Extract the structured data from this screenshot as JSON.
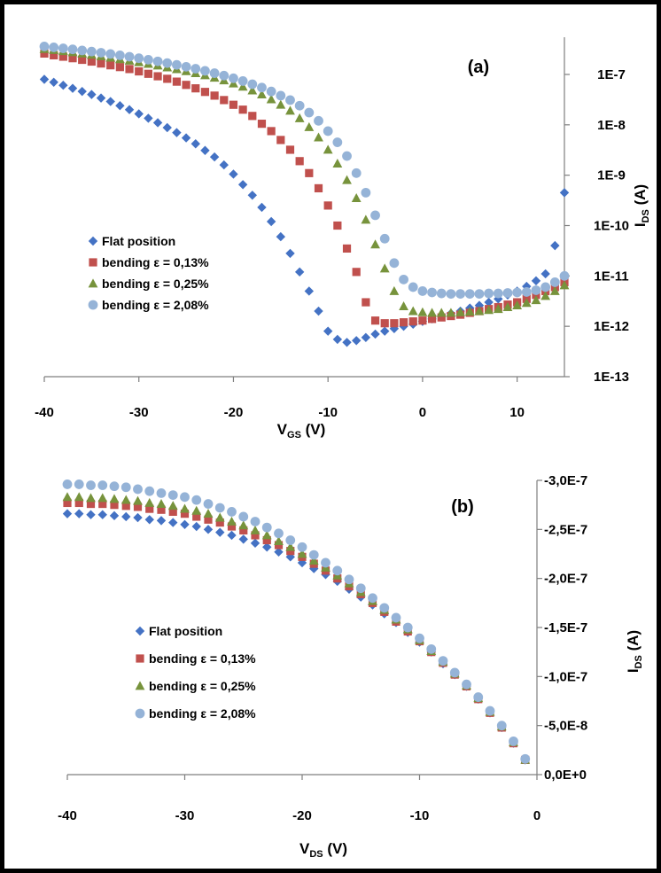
{
  "series_style": [
    {
      "color": "#4472C4",
      "marker": "diamond"
    },
    {
      "color": "#C0504D",
      "marker": "square"
    },
    {
      "color": "#77933C",
      "marker": "triangle"
    },
    {
      "color": "#95B3D7",
      "marker": "circle"
    }
  ],
  "chart_data": [
    {
      "type": "scatter",
      "panel_label": "(a)",
      "xlabel_main": "V",
      "xlabel_sub": "GS",
      "xlabel_unit": " (V)",
      "ylabel_main": "I",
      "ylabel_sub": "DS",
      "ylabel_unit": " (A)",
      "xlim": [
        -40,
        15
      ],
      "ylim": [
        1e-13,
        4e-07
      ],
      "log_y": true,
      "x_ticks": [
        -40,
        -30,
        -20,
        -10,
        0,
        10
      ],
      "x_tick_labels": [
        "-40",
        "-30",
        "-20",
        "-10",
        "0",
        "10"
      ],
      "y_ticks": [
        1e-07,
        1e-08,
        1e-09,
        1e-10,
        1e-11,
        1e-12,
        1e-13
      ],
      "y_tick_labels": [
        "1E-7",
        "1E-8",
        "1E-9",
        "1E-10",
        "1E-11",
        "1E-12",
        "1E-13"
      ],
      "y_axis_side": "right",
      "legend_position": "left-middle",
      "series": [
        {
          "name": "Flat position",
          "x": [
            -40,
            -39,
            -38,
            -37,
            -36,
            -35,
            -34,
            -33,
            -32,
            -31,
            -30,
            -29,
            -28,
            -27,
            -26,
            -25,
            -24,
            -23,
            -22,
            -21,
            -20,
            -19,
            -18,
            -17,
            -16,
            -15,
            -14,
            -13,
            -12,
            -11,
            -10,
            -9,
            -8,
            -7,
            -6,
            -5,
            -4,
            -3,
            -2,
            -1,
            0,
            1,
            2,
            3,
            4,
            5,
            6,
            7,
            8,
            9,
            10,
            11,
            12,
            13,
            14,
            15
          ],
          "y": [
            8e-08,
            7e-08,
            6.1e-08,
            5.3e-08,
            4.6e-08,
            4e-08,
            3.4e-08,
            2.9e-08,
            2.4e-08,
            2e-08,
            1.65e-08,
            1.35e-08,
            1.1e-08,
            8.8e-09,
            7e-09,
            5.5e-09,
            4.2e-09,
            3.1e-09,
            2.3e-09,
            1.6e-09,
            1.05e-09,
            6.5e-10,
            4e-10,
            2.3e-10,
            1.2e-10,
            6e-11,
            2.8e-11,
            1.2e-11,
            5e-12,
            2e-12,
            8e-13,
            5.5e-13,
            4.8e-13,
            5.2e-13,
            6e-13,
            7e-13,
            8e-13,
            9e-13,
            1e-12,
            1.1e-12,
            1.25e-12,
            1.4e-12,
            1.6e-12,
            1.8e-12,
            2e-12,
            2.3e-12,
            2.6e-12,
            3e-12,
            3.5e-12,
            4.2e-12,
            5e-12,
            6.2e-12,
            8e-12,
            1.1e-11,
            4e-11,
            4.5e-10
          ]
        },
        {
          "name": "bending ε = 0,13%",
          "x": [
            -40,
            -39,
            -38,
            -37,
            -36,
            -35,
            -34,
            -33,
            -32,
            -31,
            -30,
            -29,
            -28,
            -27,
            -26,
            -25,
            -24,
            -23,
            -22,
            -21,
            -20,
            -19,
            -18,
            -17,
            -16,
            -15,
            -14,
            -13,
            -12,
            -11,
            -10,
            -9,
            -8,
            -7,
            -6,
            -5,
            -4,
            -3,
            -2,
            -1,
            0,
            1,
            2,
            3,
            4,
            5,
            6,
            7,
            8,
            9,
            10,
            11,
            12,
            13,
            14,
            15
          ],
          "y": [
            2.6e-07,
            2.4e-07,
            2.25e-07,
            2.1e-07,
            1.95e-07,
            1.8e-07,
            1.65e-07,
            1.52e-07,
            1.4e-07,
            1.28e-07,
            1.15e-07,
            1.03e-07,
            9.2e-08,
            8.2e-08,
            7.2e-08,
            6.2e-08,
            5.3e-08,
            4.5e-08,
            3.8e-08,
            3.1e-08,
            2.5e-08,
            2e-08,
            1.5e-08,
            1.05e-08,
            7.5e-09,
            5e-09,
            3.2e-09,
            1.9e-09,
            1.1e-09,
            5.5e-10,
            2.5e-10,
            1e-10,
            3.5e-11,
            1.2e-11,
            3e-12,
            1.3e-12,
            1.15e-12,
            1.15e-12,
            1.2e-12,
            1.25e-12,
            1.3e-12,
            1.4e-12,
            1.5e-12,
            1.6e-12,
            1.7e-12,
            1.85e-12,
            2e-12,
            2.2e-12,
            2.4e-12,
            2.7e-12,
            3e-12,
            3.5e-12,
            4.2e-12,
            5e-12,
            6e-12,
            7.5e-12
          ]
        },
        {
          "name": "bending ε = 0,25%",
          "x": [
            -40,
            -39,
            -38,
            -37,
            -36,
            -35,
            -34,
            -33,
            -32,
            -31,
            -30,
            -29,
            -28,
            -27,
            -26,
            -25,
            -24,
            -23,
            -22,
            -21,
            -20,
            -19,
            -18,
            -17,
            -16,
            -15,
            -14,
            -13,
            -12,
            -11,
            -10,
            -9,
            -8,
            -7,
            -6,
            -5,
            -4,
            -3,
            -2,
            -1,
            0,
            1,
            2,
            3,
            4,
            5,
            6,
            7,
            8,
            9,
            10,
            11,
            12,
            13,
            14,
            15
          ],
          "y": [
            3.2e-07,
            3.05e-07,
            2.9e-07,
            2.75e-07,
            2.6e-07,
            2.45e-07,
            2.3e-07,
            2.15e-07,
            2e-07,
            1.88e-07,
            1.75e-07,
            1.62e-07,
            1.5e-07,
            1.38e-07,
            1.27e-07,
            1.16e-07,
            1.06e-07,
            9.6e-08,
            8.6e-08,
            7.6e-08,
            6.6e-08,
            5.7e-08,
            4.8e-08,
            4e-08,
            3.2e-08,
            2.5e-08,
            1.9e-08,
            1.35e-08,
            9e-09,
            5.6e-09,
            3.2e-09,
            1.7e-09,
            8e-10,
            3.5e-10,
            1.3e-10,
            4.2e-11,
            1.4e-11,
            5e-12,
            2.5e-12,
            2e-12,
            1.9e-12,
            1.85e-12,
            1.85e-12,
            1.85e-12,
            1.9e-12,
            1.95e-12,
            2e-12,
            2.1e-12,
            2.2e-12,
            2.4e-12,
            2.6e-12,
            2.9e-12,
            3.3e-12,
            4e-12,
            5e-12,
            6.5e-12
          ]
        },
        {
          "name": "bending ε = 2,08%",
          "x": [
            -40,
            -39,
            -38,
            -37,
            -36,
            -35,
            -34,
            -33,
            -32,
            -31,
            -30,
            -29,
            -28,
            -27,
            -26,
            -25,
            -24,
            -23,
            -22,
            -21,
            -20,
            -19,
            -18,
            -17,
            -16,
            -15,
            -14,
            -13,
            -12,
            -11,
            -10,
            -9,
            -8,
            -7,
            -6,
            -5,
            -4,
            -3,
            -2,
            -1,
            0,
            1,
            2,
            3,
            4,
            5,
            6,
            7,
            8,
            9,
            10,
            11,
            12,
            13,
            14,
            15
          ],
          "y": [
            3.6e-07,
            3.45e-07,
            3.3e-07,
            3.15e-07,
            3e-07,
            2.85e-07,
            2.7e-07,
            2.55e-07,
            2.4e-07,
            2.25e-07,
            2.1e-07,
            1.96e-07,
            1.82e-07,
            1.68e-07,
            1.55e-07,
            1.42e-07,
            1.3e-07,
            1.18e-07,
            1.06e-07,
            9.5e-08,
            8.4e-08,
            7.4e-08,
            6.4e-08,
            5.5e-08,
            4.6e-08,
            3.8e-08,
            3.1e-08,
            2.4e-08,
            1.75e-08,
            1.2e-08,
            7.5e-09,
            4.5e-09,
            2.4e-09,
            1.1e-09,
            4.5e-10,
            1.6e-10,
            5.5e-11,
            1.8e-11,
            8.5e-12,
            6e-12,
            5e-12,
            4.7e-12,
            4.5e-12,
            4.4e-12,
            4.4e-12,
            4.4e-12,
            4.4e-12,
            4.5e-12,
            4.5e-12,
            4.6e-12,
            4.7e-12,
            4.8e-12,
            5.2e-12,
            6e-12,
            7.5e-12,
            1e-11
          ]
        }
      ]
    },
    {
      "type": "scatter",
      "panel_label": "(b)",
      "xlabel_main": "V",
      "xlabel_sub": "DS",
      "xlabel_unit": " (V)",
      "ylabel_main": "I",
      "ylabel_sub": "DS",
      "ylabel_unit": " (A)",
      "xlim": [
        -40,
        0
      ],
      "ylim": [
        0,
        -3e-07
      ],
      "x_ticks": [
        -40,
        -30,
        -20,
        -10,
        0
      ],
      "x_tick_labels": [
        "-40",
        "-30",
        "-20",
        "-10",
        "0"
      ],
      "y_ticks": [
        -3e-07,
        -2.5e-07,
        -2e-07,
        -1.5e-07,
        -1e-07,
        -5e-08,
        0
      ],
      "y_tick_labels": [
        "-3,0E-7",
        "-2,5E-7",
        "-2,0E-7",
        "-1,5E-7",
        "-1,0E-7",
        "-5,0E-8",
        "0,0E+0"
      ],
      "y_axis_side": "right",
      "legend_position": "left-middle",
      "series": [
        {
          "name": "Flat position",
          "x": [
            -40,
            -39,
            -38,
            -37,
            -36,
            -35,
            -34,
            -33,
            -32,
            -31,
            -30,
            -29,
            -28,
            -27,
            -26,
            -25,
            -24,
            -23,
            -22,
            -21,
            -20,
            -19,
            -18,
            -17,
            -16,
            -15,
            -14,
            -13,
            -12,
            -11,
            -10,
            -9,
            -8,
            -7,
            -6,
            -5,
            -4,
            -3,
            -2,
            -1
          ],
          "y": [
            -2.66e-07,
            -2.66e-07,
            -2.65e-07,
            -2.65e-07,
            -2.64e-07,
            -2.63e-07,
            -2.62e-07,
            -2.6e-07,
            -2.59e-07,
            -2.57e-07,
            -2.55e-07,
            -2.53e-07,
            -2.5e-07,
            -2.47e-07,
            -2.44e-07,
            -2.4e-07,
            -2.36e-07,
            -2.32e-07,
            -2.27e-07,
            -2.22e-07,
            -2.16e-07,
            -2.1e-07,
            -2.04e-07,
            -1.97e-07,
            -1.89e-07,
            -1.81e-07,
            -1.73e-07,
            -1.64e-07,
            -1.55e-07,
            -1.45e-07,
            -1.35e-07,
            -1.25e-07,
            -1.13e-07,
            -1.02e-07,
            -9e-08,
            -7.7e-08,
            -6.3e-08,
            -4.8e-08,
            -3.2e-08,
            -1.5e-08
          ]
        },
        {
          "name": "bending ε = 0,13%",
          "x": [
            -40,
            -39,
            -38,
            -37,
            -36,
            -35,
            -34,
            -33,
            -32,
            -31,
            -30,
            -29,
            -28,
            -27,
            -26,
            -25,
            -24,
            -23,
            -22,
            -21,
            -20,
            -19,
            -18,
            -17,
            -16,
            -15,
            -14,
            -13,
            -12,
            -11,
            -10,
            -9,
            -8,
            -7,
            -6,
            -5,
            -4,
            -3,
            -2,
            -1
          ],
          "y": [
            -2.77e-07,
            -2.77e-07,
            -2.76e-07,
            -2.76e-07,
            -2.75e-07,
            -2.74e-07,
            -2.73e-07,
            -2.71e-07,
            -2.7e-07,
            -2.68e-07,
            -2.66e-07,
            -2.63e-07,
            -2.6e-07,
            -2.57e-07,
            -2.53e-07,
            -2.49e-07,
            -2.44e-07,
            -2.39e-07,
            -2.34e-07,
            -2.28e-07,
            -2.22e-07,
            -2.15e-07,
            -2.08e-07,
            -2e-07,
            -1.92e-07,
            -1.84e-07,
            -1.75e-07,
            -1.66e-07,
            -1.56e-07,
            -1.46e-07,
            -1.36e-07,
            -1.25e-07,
            -1.14e-07,
            -1.02e-07,
            -9e-08,
            -7.7e-08,
            -6.3e-08,
            -4.8e-08,
            -3.2e-08,
            -1.5e-08
          ]
        },
        {
          "name": "bending ε = 0,25%",
          "x": [
            -40,
            -39,
            -38,
            -37,
            -36,
            -35,
            -34,
            -33,
            -32,
            -31,
            -30,
            -29,
            -28,
            -27,
            -26,
            -25,
            -24,
            -23,
            -22,
            -21,
            -20,
            -19,
            -18,
            -17,
            -16,
            -15,
            -14,
            -13,
            -12,
            -11,
            -10,
            -9,
            -8,
            -7,
            -6,
            -5,
            -4,
            -3,
            -2,
            -1
          ],
          "y": [
            -2.83e-07,
            -2.83e-07,
            -2.82e-07,
            -2.82e-07,
            -2.81e-07,
            -2.8e-07,
            -2.79e-07,
            -2.77e-07,
            -2.76e-07,
            -2.74e-07,
            -2.71e-07,
            -2.69e-07,
            -2.66e-07,
            -2.62e-07,
            -2.58e-07,
            -2.54e-07,
            -2.49e-07,
            -2.44e-07,
            -2.38e-07,
            -2.32e-07,
            -2.25e-07,
            -2.18e-07,
            -2.11e-07,
            -2.03e-07,
            -1.95e-07,
            -1.86e-07,
            -1.77e-07,
            -1.68e-07,
            -1.58e-07,
            -1.48e-07,
            -1.37e-07,
            -1.26e-07,
            -1.15e-07,
            -1.03e-07,
            -9.1e-08,
            -7.8e-08,
            -6.4e-08,
            -4.9e-08,
            -3.3e-08,
            -1.5e-08
          ]
        },
        {
          "name": "bending ε = 2,08%",
          "x": [
            -40,
            -39,
            -38,
            -37,
            -36,
            -35,
            -34,
            -33,
            -32,
            -31,
            -30,
            -29,
            -28,
            -27,
            -26,
            -25,
            -24,
            -23,
            -22,
            -21,
            -20,
            -19,
            -18,
            -17,
            -16,
            -15,
            -14,
            -13,
            -12,
            -11,
            -10,
            -9,
            -8,
            -7,
            -6,
            -5,
            -4,
            -3,
            -2,
            -1
          ],
          "y": [
            -2.96e-07,
            -2.96e-07,
            -2.95e-07,
            -2.95e-07,
            -2.94e-07,
            -2.93e-07,
            -2.91e-07,
            -2.89e-07,
            -2.87e-07,
            -2.85e-07,
            -2.83e-07,
            -2.8e-07,
            -2.76e-07,
            -2.72e-07,
            -2.68e-07,
            -2.63e-07,
            -2.58e-07,
            -2.52e-07,
            -2.46e-07,
            -2.39e-07,
            -2.32e-07,
            -2.24e-07,
            -2.16e-07,
            -2.08e-07,
            -1.99e-07,
            -1.9e-07,
            -1.8e-07,
            -1.7e-07,
            -1.6e-07,
            -1.5e-07,
            -1.39e-07,
            -1.28e-07,
            -1.16e-07,
            -1.04e-07,
            -9.2e-08,
            -7.9e-08,
            -6.5e-08,
            -5e-08,
            -3.4e-08,
            -1.6e-08
          ]
        }
      ]
    }
  ]
}
